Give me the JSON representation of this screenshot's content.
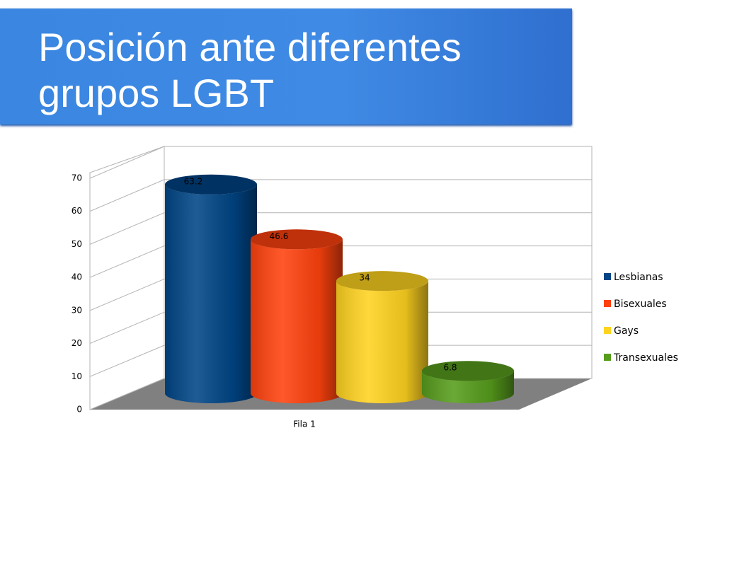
{
  "chart_data": {
    "type": "bar3d",
    "title": "Posición ante diferentes grupos LGBT",
    "categories": [
      "Fila 1"
    ],
    "series": [
      {
        "name": "Lesbianas",
        "color": "#004586",
        "values": [
          63.2
        ]
      },
      {
        "name": "Bisexuales",
        "color": "#ff420e",
        "values": [
          46.6
        ]
      },
      {
        "name": "Gays",
        "color": "#ffd320",
        "values": [
          34
        ]
      },
      {
        "name": "Transexuales",
        "color": "#579d1c",
        "values": [
          6.8
        ]
      }
    ],
    "ylim": [
      0,
      70
    ],
    "yticks": [
      0,
      10,
      20,
      30,
      40,
      50,
      60,
      70
    ],
    "grid": true,
    "legend": "right"
  }
}
